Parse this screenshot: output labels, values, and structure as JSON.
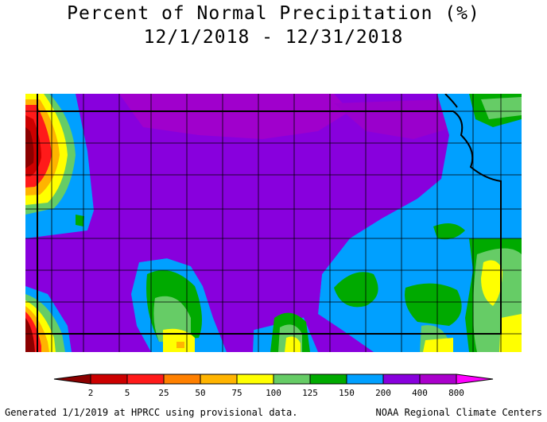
{
  "title": {
    "line1": "Percent of Normal Precipitation (%)",
    "line2": "12/1/2018 - 12/31/2018"
  },
  "legend": {
    "labels": [
      "2",
      "5",
      "25",
      "50",
      "75",
      "100",
      "125",
      "150",
      "200",
      "400",
      "800"
    ],
    "colors": [
      "#8b0000",
      "#cc0000",
      "#ff1a1a",
      "#ff8000",
      "#ffb400",
      "#ffff00",
      "#66cc66",
      "#00aa00",
      "#00a0ff",
      "#8800dd",
      "#aa00cc",
      "#ff00ff"
    ]
  },
  "footer": {
    "left": "Generated 1/1/2019 at HPRCC using provisional data.",
    "right": "NOAA Regional Climate Centers"
  }
}
